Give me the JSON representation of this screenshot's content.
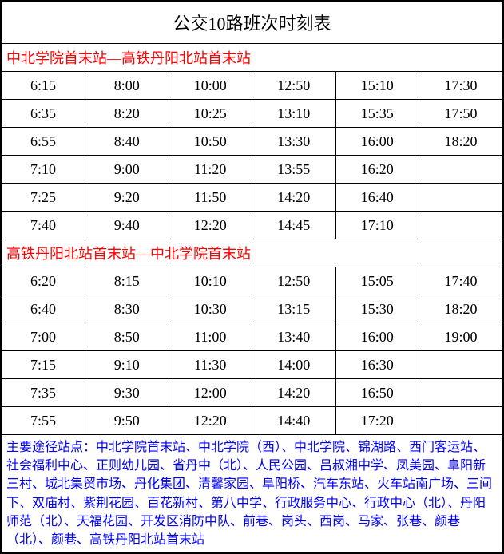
{
  "title": "公交10路班次时刻表",
  "direction1": {
    "label": "中北学院首末站—高铁丹阳北站首末站",
    "rows": [
      [
        "6:15",
        "8:00",
        "10:00",
        "12:50",
        "15:10",
        "17:30"
      ],
      [
        "6:35",
        "8:20",
        "10:25",
        "13:10",
        "15:35",
        "17:50"
      ],
      [
        "6:55",
        "8:40",
        "10:50",
        "13:30",
        "16:00",
        "18:20"
      ],
      [
        "7:10",
        "9:00",
        "11:20",
        "13:55",
        "16:20",
        ""
      ],
      [
        "7:25",
        "9:20",
        "11:50",
        "14:20",
        "16:40",
        ""
      ],
      [
        "7:40",
        "9:40",
        "12:20",
        "14:45",
        "17:10",
        ""
      ]
    ]
  },
  "direction2": {
    "label": "高铁丹阳北站首末站—中北学院首末站",
    "rows": [
      [
        "6:20",
        "8:15",
        "10:10",
        "12:50",
        "15:05",
        "17:40"
      ],
      [
        "6:40",
        "8:30",
        "10:30",
        "13:15",
        "15:30",
        "18:20"
      ],
      [
        "7:00",
        "8:50",
        "11:00",
        "13:40",
        "16:00",
        "19:00"
      ],
      [
        "7:15",
        "9:10",
        "11:30",
        "14:00",
        "16:30",
        ""
      ],
      [
        "7:35",
        "9:30",
        "12:00",
        "14:20",
        "16:50",
        ""
      ],
      [
        "7:55",
        "9:50",
        "12:20",
        "14:40",
        "17:20",
        ""
      ]
    ]
  },
  "stops": "主要途径站点：中北学院首末站、中北学院（西）、中北学院、锦湖路、西门客运站、社会福利中心、正则幼儿园、省丹中（北）、人民公园、吕叔湘中学、凤美园、阜阳新三村、城北集贸市场、丹化集团、清馨家园、阜阳桥、汽车东站、火车站南广场、三间下、双庙村、紫荆花园、百花新村、第八中学、行政服务中心、行政中心（北）、丹阳师范（北）、天福花园、开发区消防中队、前巷、岗头、西岗、马家、张巷、颜巷（北）、颜巷、高铁丹阳北站首末站",
  "colors": {
    "direction_color": "#ff0000",
    "stops_color": "#0000ff",
    "border_color": "#000000",
    "background": "#ffffff"
  }
}
